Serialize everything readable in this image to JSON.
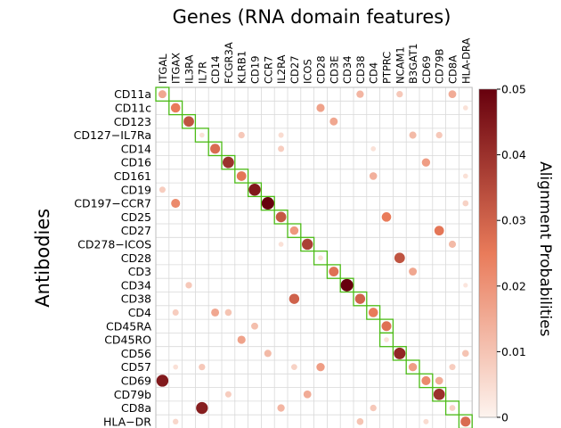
{
  "chart_data": {
    "type": "heatmap",
    "title": "Genes (RNA domain features)",
    "ylabel": "Antibodies",
    "colorbar_label": "Alignment Probabilities",
    "colorbar_ticks": [
      "0",
      "0.01",
      "0.02",
      "0.03",
      "0.04",
      "0.05"
    ],
    "colorbar_range": [
      0,
      0.05
    ],
    "colors": {
      "low": "#fdf4ef",
      "mid": "#e97b5a",
      "high": "#67000d",
      "diagonal_box": "#4cbb17",
      "grid": "#d9d9d9"
    },
    "columns": [
      "ITGAL",
      "ITGAX",
      "IL3RA",
      "IL7R",
      "CD14",
      "FCGR3A",
      "KLRB1",
      "CD19",
      "CCR7",
      "IL2RA",
      "CD27",
      "ICOS",
      "CD28",
      "CD3E",
      "CD34",
      "CD38",
      "CD4",
      "PTPRC",
      "NCAM1",
      "B3GAT1",
      "CD69",
      "CD79B",
      "CD8A",
      "HLA-DRA"
    ],
    "rows": [
      "CD11a",
      "CD11c",
      "CD123",
      "CD127−IL7Ra",
      "CD14",
      "CD16",
      "CD161",
      "CD19",
      "CD197−CCR7",
      "CD25",
      "CD27",
      "CD278−ICOS",
      "CD28",
      "CD3",
      "CD34",
      "CD38",
      "CD4",
      "CD45RA",
      "CD45RO",
      "CD56",
      "CD57",
      "CD69",
      "CD79b",
      "CD8a",
      "HLA−DR"
    ],
    "diagonal_boxes": [
      [
        0,
        0
      ],
      [
        1,
        1
      ],
      [
        2,
        2
      ],
      [
        3,
        3
      ],
      [
        4,
        4
      ],
      [
        5,
        5
      ],
      [
        6,
        6
      ],
      [
        7,
        7
      ],
      [
        8,
        8
      ],
      [
        9,
        9
      ],
      [
        10,
        10
      ],
      [
        11,
        11
      ],
      [
        12,
        12
      ],
      [
        13,
        13
      ],
      [
        14,
        14
      ],
      [
        15,
        15
      ],
      [
        16,
        16
      ],
      [
        17,
        17
      ],
      [
        18,
        17
      ],
      [
        19,
        18
      ],
      [
        20,
        19
      ],
      [
        21,
        20
      ],
      [
        22,
        21
      ],
      [
        23,
        22
      ],
      [
        24,
        23
      ]
    ],
    "points": [
      [
        0,
        0,
        0.016
      ],
      [
        0,
        15,
        0.013
      ],
      [
        0,
        18,
        0.009
      ],
      [
        0,
        22,
        0.015
      ],
      [
        1,
        1,
        0.025
      ],
      [
        1,
        12,
        0.017
      ],
      [
        1,
        23,
        0.004
      ],
      [
        2,
        2,
        0.033
      ],
      [
        2,
        13,
        0.016
      ],
      [
        3,
        3,
        0.004
      ],
      [
        3,
        6,
        0.009
      ],
      [
        3,
        9,
        0.005
      ],
      [
        3,
        19,
        0.012
      ],
      [
        3,
        21,
        0.009
      ],
      [
        4,
        4,
        0.028
      ],
      [
        4,
        9,
        0.008
      ],
      [
        4,
        16,
        0.004
      ],
      [
        5,
        5,
        0.04
      ],
      [
        5,
        20,
        0.018
      ],
      [
        6,
        6,
        0.026
      ],
      [
        6,
        16,
        0.014
      ],
      [
        6,
        23,
        0.004
      ],
      [
        7,
        0,
        0.008
      ],
      [
        7,
        7,
        0.045
      ],
      [
        8,
        1,
        0.022
      ],
      [
        8,
        8,
        0.05
      ],
      [
        8,
        23,
        0.007
      ],
      [
        9,
        9,
        0.032
      ],
      [
        9,
        17,
        0.025
      ],
      [
        10,
        10,
        0.019
      ],
      [
        10,
        21,
        0.026
      ],
      [
        11,
        9,
        0.004
      ],
      [
        11,
        11,
        0.037
      ],
      [
        11,
        22,
        0.012
      ],
      [
        12,
        12,
        0.004
      ],
      [
        12,
        18,
        0.033
      ],
      [
        13,
        13,
        0.027
      ],
      [
        13,
        19,
        0.016
      ],
      [
        14,
        2,
        0.009
      ],
      [
        14,
        14,
        0.05
      ],
      [
        14,
        23,
        0.003
      ],
      [
        15,
        10,
        0.03
      ],
      [
        15,
        15,
        0.03
      ],
      [
        16,
        1,
        0.008
      ],
      [
        16,
        4,
        0.016
      ],
      [
        16,
        5,
        0.01
      ],
      [
        16,
        16,
        0.025
      ],
      [
        17,
        7,
        0.011
      ],
      [
        17,
        17,
        0.027
      ],
      [
        18,
        6,
        0.017
      ],
      [
        18,
        17,
        0.004
      ],
      [
        19,
        8,
        0.012
      ],
      [
        19,
        18,
        0.042
      ],
      [
        19,
        23,
        0.01
      ],
      [
        20,
        1,
        0.004
      ],
      [
        20,
        3,
        0.009
      ],
      [
        20,
        10,
        0.007
      ],
      [
        20,
        12,
        0.018
      ],
      [
        20,
        19,
        0.018
      ],
      [
        20,
        22,
        0.008
      ],
      [
        21,
        0,
        0.045
      ],
      [
        21,
        20,
        0.022
      ],
      [
        21,
        21,
        0.015
      ],
      [
        22,
        5,
        0.008
      ],
      [
        22,
        11,
        0.015
      ],
      [
        22,
        21,
        0.04
      ],
      [
        23,
        3,
        0.044
      ],
      [
        23,
        9,
        0.013
      ],
      [
        23,
        16,
        0.009
      ],
      [
        23,
        22,
        0.007
      ],
      [
        24,
        1,
        0.006
      ],
      [
        24,
        15,
        0.01
      ],
      [
        24,
        20,
        0.005
      ],
      [
        24,
        23,
        0.028
      ]
    ]
  }
}
